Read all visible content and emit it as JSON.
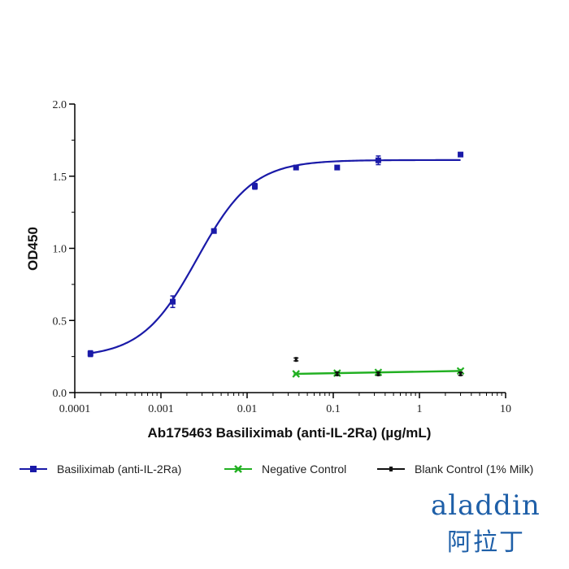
{
  "chart_data": {
    "type": "line",
    "title": "",
    "xlabel": "Ab175463 Basiliximab (anti-IL-2Ra) (µg/mL)",
    "ylabel": "OD450",
    "x_scale": "log",
    "xlim": [
      0.0001,
      10
    ],
    "ylim": [
      0.0,
      2.0
    ],
    "x_tick_labels": [
      "0.0001",
      "0.001",
      "0.01",
      "0.1",
      "1",
      "10"
    ],
    "x_ticks": [
      0.0001,
      0.001,
      0.01,
      0.1,
      1,
      10
    ],
    "y_tick_labels": [
      "0.0",
      "0.5",
      "1.0",
      "1.5",
      "2.0"
    ],
    "y_ticks": [
      0.0,
      0.5,
      1.0,
      1.5,
      2.0
    ],
    "legend_position": "bottom",
    "series": [
      {
        "name": "Basiliximab (anti-IL-2Ra)",
        "color": "#1a1aa8",
        "marker": "square",
        "x": [
          0.000152,
          0.00137,
          0.00412,
          0.0123,
          0.037,
          0.111,
          0.333,
          3.0
        ],
        "y": [
          0.27,
          0.63,
          1.12,
          1.43,
          1.56,
          1.56,
          1.61,
          1.65
        ],
        "error": [
          0.02,
          0.04,
          0.01,
          0.02,
          0.01,
          0.01,
          0.03,
          0.0
        ],
        "fit": {
          "bottom": 0.245,
          "top": 1.612,
          "logEC50": -2.58,
          "hill": 1.35,
          "x_range": [
            0.000152,
            3.0
          ]
        }
      },
      {
        "name": "Negative Control",
        "color": "#22b022",
        "marker": "x",
        "x": [
          0.037,
          0.111,
          0.333,
          3.0
        ],
        "y": [
          0.13,
          0.135,
          0.14,
          0.15
        ],
        "error": [
          0.005,
          0.01,
          0.01,
          0.01
        ]
      },
      {
        "name": "Blank Control (1% Milk)",
        "color": "#111111",
        "marker": "dash",
        "x": [
          0.037,
          0.111,
          0.333,
          3.0
        ],
        "y": [
          0.23,
          0.13,
          0.13,
          0.13
        ],
        "error": [
          0.01,
          0.01,
          0.01,
          0.01
        ]
      }
    ]
  },
  "logo": {
    "text": "aladdin",
    "chinese": "阿拉丁",
    "color": "#1e5fa8"
  }
}
